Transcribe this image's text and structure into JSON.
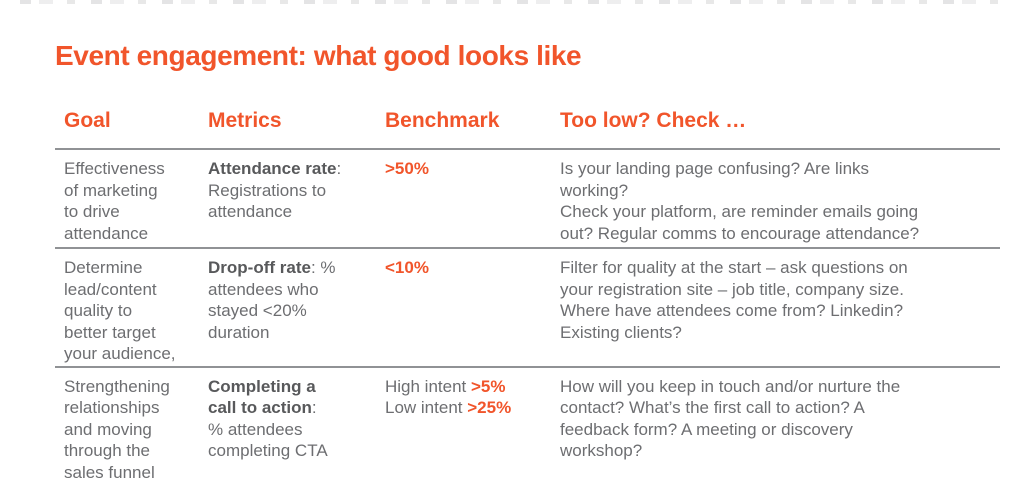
{
  "page": {
    "title": "Event engagement: what good looks like"
  },
  "colors": {
    "accent_orange": "#F1552B",
    "body_gray": "#6D6E71",
    "rule_gray": "#909295"
  },
  "table": {
    "headers": [
      "Goal",
      "Metrics",
      "Benchmark",
      "Too low? Check …"
    ],
    "rows": [
      {
        "goal": "Effectiveness\nof marketing\nto drive\nattendance",
        "metric_name": "Attendance rate",
        "metric_desc": ":\nRegistrations to\nattendance",
        "benchmark": [
          {
            "prefix": "",
            "value": ">50%"
          }
        ],
        "check": "Is your landing page confusing? Are links\nworking?\nCheck your platform, are reminder emails going\nout? Regular comms to encourage attendance?"
      },
      {
        "goal": "Determine\nlead/content\nquality to\nbetter target\nyour audience,",
        "metric_name": "Drop-off rate",
        "metric_desc": ": %\nattendees who\nstayed <20%\nduration",
        "benchmark": [
          {
            "prefix": "",
            "value": "<10%"
          }
        ],
        "check": "Filter for quality at the start – ask questions on\nyour registration site – job title, company size.\nWhere have attendees come from? Linkedin?\nExisting clients?"
      },
      {
        "goal": "Strengthening\nrelationships\nand moving\nthrough the\nsales funnel",
        "metric_name": "Completing a\ncall to action",
        "metric_desc": ":\n% attendees\ncompleting CTA",
        "benchmark": [
          {
            "prefix": "High intent ",
            "value": ">5%"
          },
          {
            "prefix": "Low intent ",
            "value": ">25%"
          }
        ],
        "check": "How will you keep in touch and/or nurture the\ncontact? What’s the first call to action? A\nfeedback form? A meeting or discovery\nworkshop?"
      }
    ]
  }
}
